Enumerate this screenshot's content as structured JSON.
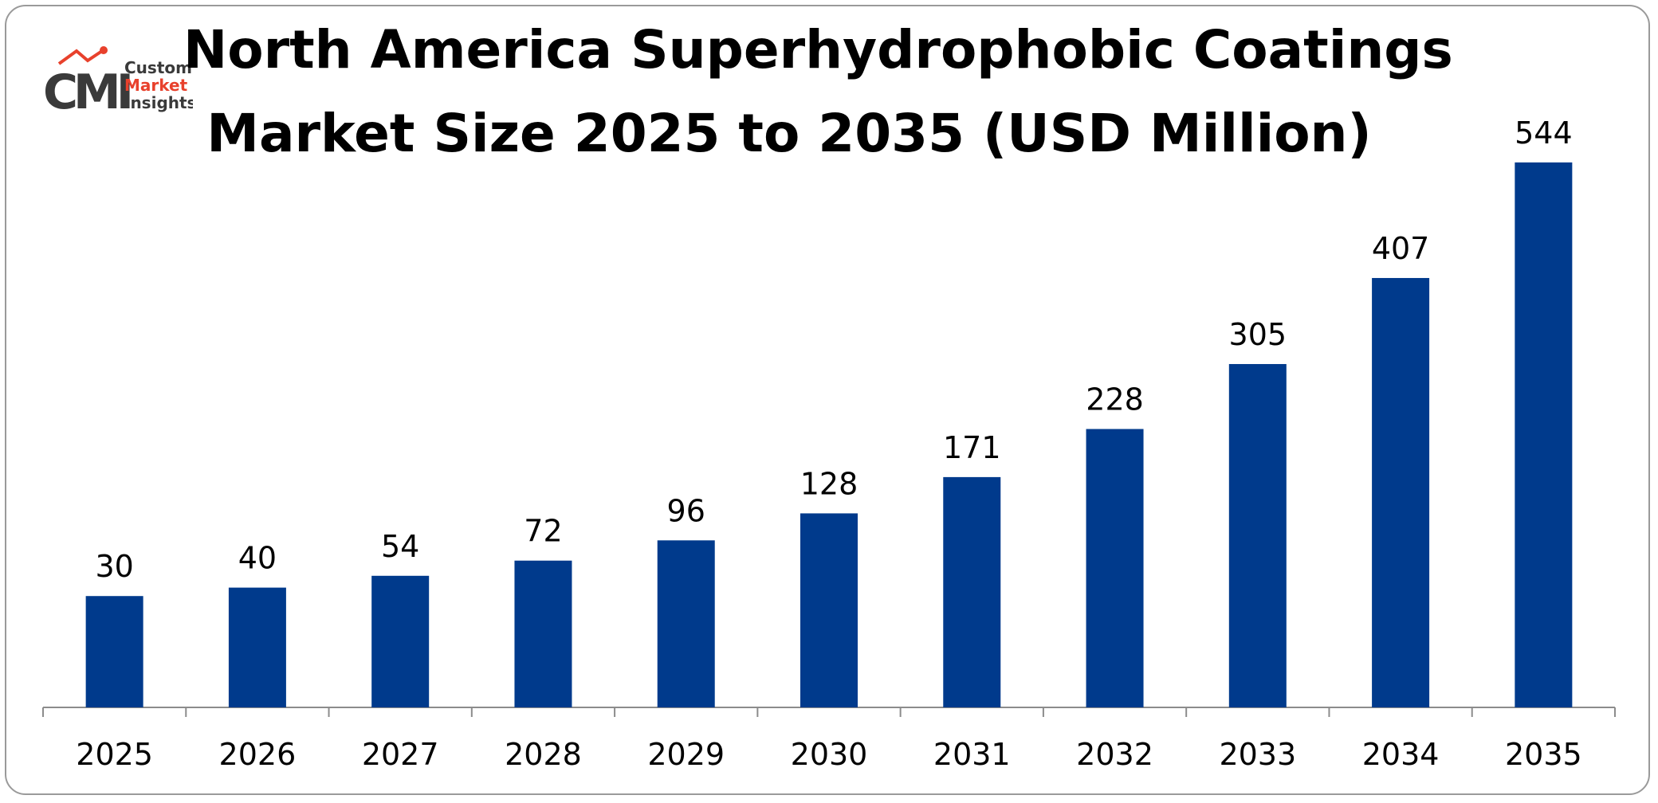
{
  "title_lines": [
    "North America Superhydrophobic Coatings",
    "Market Size 2025 to 2035 (USD Million)"
  ],
  "logo": {
    "icon": "custom-market-insights-logo",
    "mark": "CMI",
    "line1": "Custom",
    "line2": "Market",
    "line3": "Insights",
    "colors": {
      "mark": "#3a3a3a",
      "accent": "#e8412c"
    }
  },
  "chart_data": {
    "type": "bar",
    "title": "North America Superhydrophobic Coatings Market Size 2025 to 2035 (USD Million)",
    "categories": [
      "2025",
      "2026",
      "2027",
      "2028",
      "2029",
      "2030",
      "2031",
      "2032",
      "2033",
      "2034",
      "2035"
    ],
    "values": [
      30,
      40,
      54,
      72,
      96,
      128,
      171,
      228,
      305,
      407,
      544
    ],
    "data_labels": [
      "30",
      "40",
      "54",
      "72",
      "96",
      "128",
      "171",
      "228",
      "305",
      "407",
      "544"
    ],
    "xlabel": "",
    "ylabel": "",
    "ylim": [
      -102,
      576
    ],
    "grid": false,
    "legend": "none",
    "colors": {
      "bar": "#003a8c",
      "axis": "#8c8c8c"
    }
  }
}
